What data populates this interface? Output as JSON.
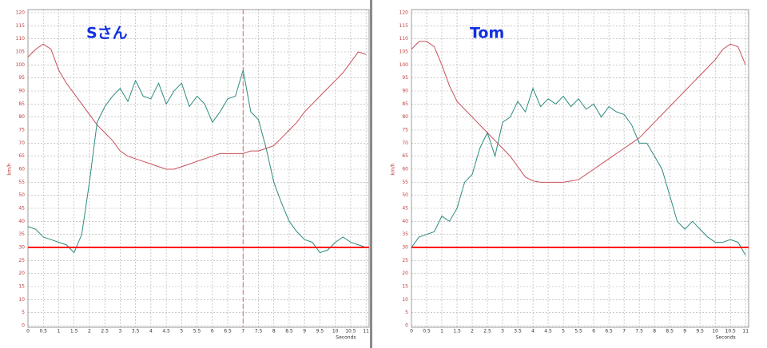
{
  "chart_data": [
    {
      "type": "line",
      "title": "Sさん",
      "xlabel": "Seconds",
      "ylabel": "km/h",
      "x": [
        0,
        0.25,
        0.5,
        0.75,
        1,
        1.25,
        1.5,
        1.75,
        2,
        2.25,
        2.5,
        2.75,
        3,
        3.25,
        3.5,
        3.75,
        4,
        4.25,
        4.5,
        4.75,
        5,
        5.25,
        5.5,
        5.75,
        6,
        6.25,
        6.5,
        6.75,
        7,
        7.25,
        7.5,
        7.75,
        8,
        8.25,
        8.5,
        8.75,
        9,
        9.25,
        9.5,
        9.75,
        10,
        10.25,
        10.5,
        10.75,
        11
      ],
      "series": [
        {
          "color": "#c8505a",
          "values": [
            103,
            106,
            108,
            106,
            98,
            93,
            89,
            85,
            81,
            77,
            74,
            71,
            67,
            65,
            64,
            63,
            62,
            61,
            60,
            60,
            61,
            62,
            63,
            64,
            65,
            66,
            66,
            66,
            66,
            67,
            67,
            68,
            69,
            72,
            75,
            78,
            82,
            85,
            88,
            91,
            94,
            97,
            101,
            105,
            104
          ]
        },
        {
          "color": "#2e8b80",
          "values": [
            38,
            37,
            34,
            33,
            32,
            31,
            28,
            35,
            55,
            78,
            84,
            88,
            91,
            86,
            94,
            88,
            87,
            93,
            85,
            90,
            93,
            84,
            88,
            85,
            78,
            82,
            87,
            88,
            98,
            82,
            79,
            68,
            55,
            47,
            40,
            36,
            33,
            32,
            28,
            29,
            32,
            34,
            32,
            31,
            30
          ]
        }
      ],
      "hline": 30,
      "hline_color": "#ff0000",
      "vline": 7,
      "vline_color": "#e06070",
      "xlim": [
        0,
        11.1
      ],
      "ylim": [
        0,
        120
      ],
      "xticks": [
        0,
        0.5,
        1,
        1.5,
        2,
        2.5,
        3,
        3.5,
        4,
        4.5,
        5,
        5.5,
        6,
        6.5,
        7,
        7.5,
        8,
        8.5,
        9,
        9.5,
        10,
        10.5,
        11
      ],
      "yticks": [
        0,
        5,
        10,
        15,
        20,
        25,
        30,
        35,
        40,
        45,
        50,
        55,
        60,
        65,
        70,
        75,
        80,
        85,
        90,
        95,
        100,
        105,
        110,
        115,
        120
      ],
      "grid": true
    },
    {
      "type": "line",
      "title": "Tom",
      "xlabel": "Seconds",
      "ylabel": "km/h",
      "x": [
        0,
        0.25,
        0.5,
        0.75,
        1,
        1.25,
        1.5,
        1.75,
        2,
        2.25,
        2.5,
        2.75,
        3,
        3.25,
        3.5,
        3.75,
        4,
        4.25,
        4.5,
        4.75,
        5,
        5.25,
        5.5,
        5.75,
        6,
        6.25,
        6.5,
        6.75,
        7,
        7.25,
        7.5,
        7.75,
        8,
        8.25,
        8.5,
        8.75,
        9,
        9.25,
        9.5,
        9.75,
        10,
        10.25,
        10.5,
        10.75,
        11
      ],
      "series": [
        {
          "color": "#c8505a",
          "values": [
            106,
            109,
            109,
            107,
            100,
            92,
            86,
            83,
            80,
            77,
            74,
            71,
            68,
            65,
            61,
            57,
            55.5,
            55,
            55,
            55,
            55,
            55.5,
            56,
            58,
            60,
            62,
            64,
            66,
            68,
            70,
            72,
            75,
            78,
            81,
            84,
            87,
            90,
            93,
            96,
            99,
            102,
            106,
            108,
            107,
            100
          ]
        },
        {
          "color": "#2e8b80",
          "values": [
            30,
            34,
            35,
            36,
            42,
            40,
            45,
            55,
            58,
            68,
            74,
            65,
            78,
            80,
            86,
            82,
            91,
            84,
            87,
            85,
            88,
            84,
            87,
            83,
            85,
            80,
            84,
            82,
            81,
            77,
            70,
            70,
            65,
            60,
            50,
            40,
            37,
            40,
            37,
            34,
            32,
            32,
            33,
            32,
            27
          ]
        }
      ],
      "hline": 30,
      "hline_color": "#ff0000",
      "xlim": [
        0,
        11.1
      ],
      "ylim": [
        0,
        120
      ],
      "xticks": [
        0,
        0.5,
        1,
        1.5,
        2,
        2.5,
        3,
        3.5,
        4,
        4.5,
        5,
        5.5,
        6,
        6.5,
        7,
        7.5,
        8,
        8.5,
        9,
        9.5,
        10,
        10.5,
        11
      ],
      "yticks": [
        0,
        5,
        10,
        15,
        20,
        25,
        30,
        35,
        40,
        45,
        50,
        55,
        60,
        65,
        70,
        75,
        80,
        85,
        90,
        95,
        100,
        105,
        110,
        115,
        120
      ],
      "grid": true
    }
  ]
}
